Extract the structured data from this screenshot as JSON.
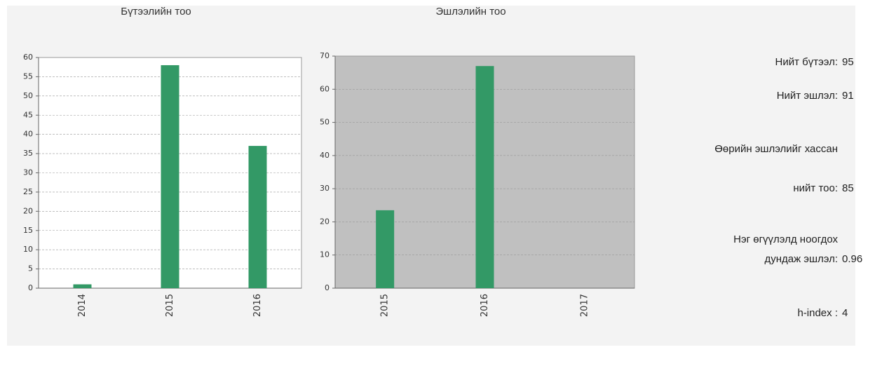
{
  "chart_data": [
    {
      "type": "bar",
      "title": "Бүтээлийн тоо",
      "categories": [
        "2014",
        "2015",
        "2016"
      ],
      "values": [
        1,
        58,
        37
      ],
      "color": "#339966",
      "ylim": [
        0,
        60
      ],
      "yticks": [
        0,
        5,
        10,
        15,
        20,
        25,
        30,
        35,
        40,
        45,
        50,
        55,
        60
      ],
      "grid": true,
      "plot_background": "#ffffff"
    },
    {
      "type": "bar",
      "title": "Эшлэлийн тоо",
      "categories": [
        "2015",
        "2016",
        "2017"
      ],
      "values": [
        23.5,
        67,
        0
      ],
      "color": "#339966",
      "ylim": [
        0,
        70
      ],
      "yticks": [
        0,
        10,
        20,
        30,
        40,
        50,
        60,
        70
      ],
      "grid": true,
      "plot_background": "#c0c0c0"
    }
  ],
  "stats": [
    {
      "label": [
        "Нийт бүтээл:"
      ],
      "value": 95
    },
    {
      "label": [
        "Нийт эшлэл:"
      ],
      "value": 91
    },
    {
      "label": [
        "Өөрийн эшлэлийг хассан",
        "нийт тоо:"
      ],
      "value": 85
    },
    {
      "label": [
        "Нэг өгүүлэлд ноогдох",
        "дундаж эшлэл:"
      ],
      "value": 0.96
    },
    {
      "label": [
        "h-index :"
      ],
      "value": 4
    }
  ]
}
